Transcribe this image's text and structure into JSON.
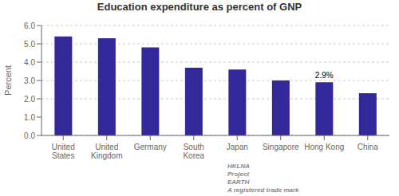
{
  "chart_data": {
    "type": "bar",
    "title": "Education expenditure as percent of GNP",
    "ylabel": "Percent",
    "categories": [
      "United\nStates",
      "United\nKingdom",
      "Germany",
      "South\nKorea",
      "Japan",
      "Singapore",
      "Hong Kong",
      "China"
    ],
    "values": [
      5.4,
      5.3,
      4.8,
      3.7,
      3.6,
      3.0,
      2.9,
      2.3
    ],
    "color": "#33289A",
    "ylim": [
      0.0,
      6.0
    ],
    "yticks": [
      {
        "value": 0,
        "label": "0.0"
      },
      {
        "value": 1,
        "label": "1.0"
      },
      {
        "value": 2,
        "label": "2.0"
      },
      {
        "value": 3,
        "label": "3.0"
      },
      {
        "value": 4,
        "label": "4.0"
      },
      {
        "value": 5,
        "label": "5.0"
      },
      {
        "value": 6,
        "label": "6.0"
      }
    ],
    "grid": true,
    "annotations": [
      {
        "text": "2.9%",
        "x": "Hong Kong",
        "y": 2.9
      },
      {
        "text": "HKLNA"
      },
      {
        "text": "Project"
      },
      {
        "text": "EARTH"
      },
      {
        "text": "A registered trade mark"
      }
    ]
  }
}
